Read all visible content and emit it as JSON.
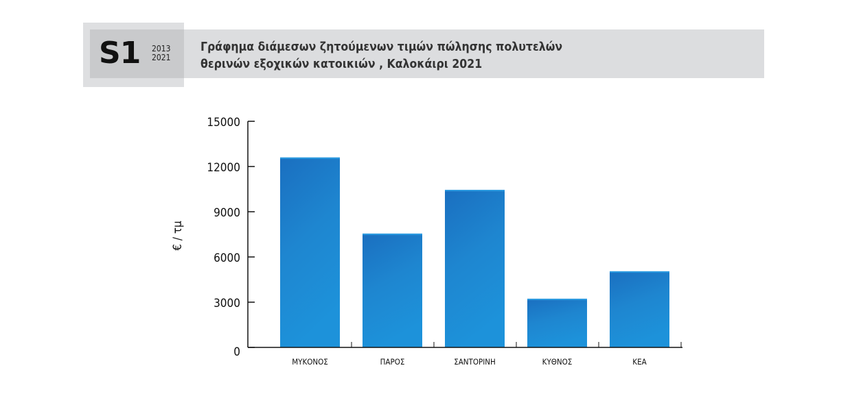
{
  "header": {
    "code": "S1",
    "years": [
      "2013",
      "2021"
    ],
    "title_lines": [
      "Γράφημα διάμεσων ζητούμενων τιμών πώλησης πολυτελών",
      "θερινών εξοχικών κατοικιών , Καλοκάιρι 2021"
    ]
  },
  "chart_data": {
    "type": "bar",
    "title": "Γράφημα διάμεσων ζητούμενων τιμών πώλησης πολυτελών θερινών εξοχικών κατοικιών , Καλοκάιρι 2021",
    "categories": [
      "ΜΥΚΟΝΟΣ",
      "ΠΑΡΟΣ",
      "ΣΑΝΤΟΡΙΝΗ",
      "ΚΥΘΝΟΣ",
      "ΚΕΑ"
    ],
    "values": [
      12600,
      7550,
      10450,
      3230,
      5050
    ],
    "xlabel": "",
    "ylabel": "€ / τμ",
    "ylim": [
      0,
      15000
    ],
    "yticks": [
      0,
      3000,
      6000,
      9000,
      12000,
      15000
    ],
    "grid": false,
    "bar_color": "#1f8fd6"
  }
}
